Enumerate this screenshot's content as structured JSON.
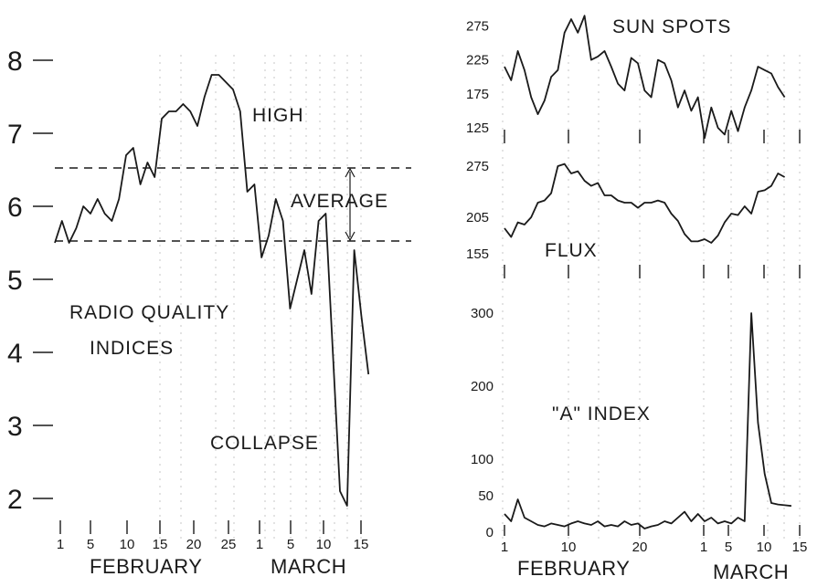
{
  "chart_data": [
    {
      "type": "line",
      "title": "",
      "annotations": [
        "HIGH",
        "AVERAGE",
        "RADIO QUALITY",
        "INDICES",
        "COLLAPSE"
      ],
      "xlabel_months": [
        "FEBRUARY",
        "MARCH"
      ],
      "x_ticks": [
        "1",
        "5",
        "10",
        "15",
        "20",
        "25",
        "1",
        "5",
        "10",
        "15"
      ],
      "y_ticks": [
        "8",
        "7",
        "6",
        "5",
        "4",
        "3",
        "2"
      ],
      "ylim": [
        1.8,
        8.2
      ],
      "average_band": [
        5.5,
        6.5
      ],
      "series": [
        {
          "x": [
            1,
            2,
            3,
            4,
            5,
            6,
            7,
            8,
            9,
            10,
            11,
            12,
            13,
            14,
            15,
            16,
            17,
            18,
            19,
            20,
            21,
            22,
            23,
            24,
            25,
            26,
            27,
            28,
            29,
            30,
            31,
            32,
            33,
            34,
            35,
            36,
            37,
            38,
            39,
            40,
            41,
            42,
            43,
            44,
            45
          ],
          "values": [
            5.5,
            5.8,
            5.5,
            5.7,
            6.0,
            5.9,
            6.1,
            5.9,
            5.8,
            6.1,
            6.7,
            6.8,
            6.3,
            6.6,
            6.4,
            7.2,
            7.3,
            7.3,
            7.4,
            7.3,
            7.1,
            7.5,
            7.8,
            7.8,
            7.7,
            7.6,
            7.3,
            6.2,
            6.3,
            5.3,
            5.6,
            6.1,
            5.8,
            4.6,
            5.0,
            5.4,
            4.8,
            5.8,
            5.9,
            4.0,
            2.1,
            1.9,
            5.4,
            4.5,
            3.7
          ]
        }
      ]
    },
    {
      "type": "line",
      "title": "SUN SPOTS",
      "y_ticks": [
        "275",
        "225",
        "175",
        "125"
      ],
      "ylim": [
        115,
        290
      ],
      "series": [
        {
          "x": [
            1,
            2,
            3,
            4,
            5,
            6,
            7,
            8,
            9,
            10,
            11,
            12,
            13,
            14,
            15,
            16,
            17,
            18,
            19,
            20,
            21,
            22,
            23,
            24,
            25,
            26,
            27,
            28,
            29,
            30,
            31,
            32,
            33,
            34,
            35,
            36,
            37,
            38,
            39,
            40,
            41,
            42,
            43
          ],
          "values": [
            215,
            195,
            238,
            210,
            170,
            145,
            165,
            200,
            210,
            265,
            285,
            265,
            290,
            225,
            230,
            238,
            215,
            190,
            180,
            228,
            220,
            180,
            170,
            225,
            220,
            195,
            155,
            180,
            150,
            170,
            110,
            155,
            125,
            115,
            150,
            120,
            155,
            180,
            215,
            210,
            205,
            185,
            170
          ]
        }
      ]
    },
    {
      "type": "line",
      "title": "FLUX",
      "y_ticks": [
        "275",
        "205",
        "155"
      ],
      "ylim": [
        145,
        285
      ],
      "series": [
        {
          "x": [
            1,
            2,
            3,
            4,
            5,
            6,
            7,
            8,
            9,
            10,
            11,
            12,
            13,
            14,
            15,
            16,
            17,
            18,
            19,
            20,
            21,
            22,
            23,
            24,
            25,
            26,
            27,
            28,
            29,
            30,
            31,
            32,
            33,
            34,
            35,
            36,
            37,
            38,
            39,
            40,
            41,
            42,
            43
          ],
          "values": [
            190,
            178,
            198,
            195,
            205,
            225,
            228,
            238,
            275,
            278,
            265,
            268,
            255,
            248,
            252,
            235,
            235,
            228,
            225,
            225,
            218,
            225,
            225,
            228,
            225,
            210,
            200,
            182,
            172,
            172,
            175,
            170,
            180,
            198,
            210,
            208,
            220,
            210,
            240,
            242,
            248,
            265,
            260
          ]
        }
      ]
    },
    {
      "type": "line",
      "title": "\"A\" INDEX",
      "y_ticks": [
        "300",
        "200",
        "100",
        "50",
        "0"
      ],
      "ylim": [
        0,
        310
      ],
      "series": [
        {
          "x": [
            1,
            2,
            3,
            4,
            5,
            6,
            7,
            8,
            9,
            10,
            11,
            12,
            13,
            14,
            15,
            16,
            17,
            18,
            19,
            20,
            21,
            22,
            23,
            24,
            25,
            26,
            27,
            28,
            29,
            30,
            31,
            32,
            33,
            34,
            35,
            36,
            37,
            38,
            39,
            40,
            41,
            42,
            43,
            44
          ],
          "values": [
            25,
            15,
            45,
            20,
            15,
            10,
            8,
            12,
            10,
            8,
            12,
            15,
            12,
            10,
            15,
            8,
            10,
            8,
            15,
            10,
            12,
            5,
            8,
            10,
            15,
            12,
            20,
            28,
            15,
            25,
            15,
            20,
            12,
            15,
            12,
            20,
            15,
            300,
            150,
            80,
            40,
            38,
            37,
            36
          ]
        }
      ]
    },
    {
      "type": "axis",
      "xlabel_months": [
        "FEBRUARY",
        "MARCH"
      ],
      "x_ticks": [
        "1",
        "10",
        "20",
        "1",
        "5",
        "10",
        "15"
      ]
    }
  ]
}
